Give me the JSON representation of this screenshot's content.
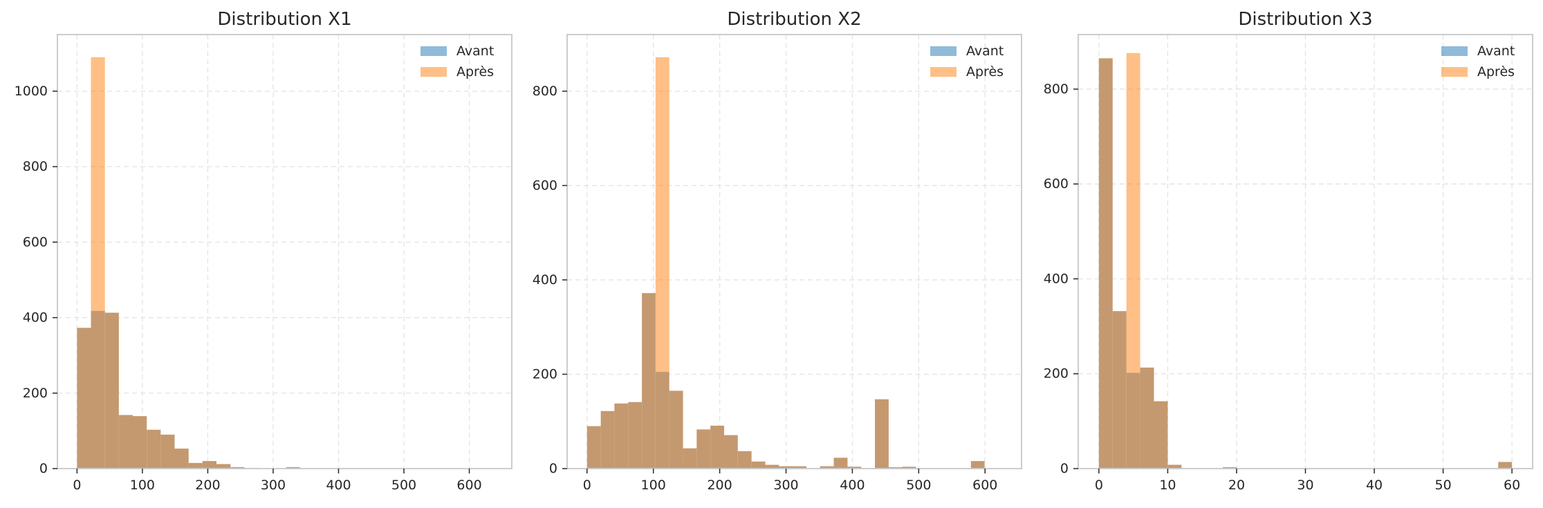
{
  "colors": {
    "avant": "#1f77b4",
    "apres": "#ff7f0e",
    "overlap": "#c4996f",
    "grid": "#e3e3e3",
    "axis": "#cccccc",
    "text": "#262626"
  },
  "chart_data": [
    {
      "type": "histogram",
      "title": "Distribution X1",
      "xlabel": "",
      "ylabel": "",
      "xlim": [
        -30,
        665
      ],
      "ylim": [
        0,
        1150
      ],
      "xticks": [
        0,
        100,
        200,
        300,
        400,
        500,
        600
      ],
      "yticks": [
        0,
        200,
        400,
        600,
        800,
        1000
      ],
      "grid": true,
      "legend_position": "top-right",
      "series": [
        {
          "name": "Avant",
          "bin_edges": [
            0,
            21.3,
            42.7,
            64,
            85.3,
            106.7,
            128,
            149.3,
            170.7,
            192,
            213.3,
            234.7,
            256,
            277.3,
            298.7,
            320,
            341.3,
            362.7,
            384,
            405.3,
            426.7,
            448,
            469.3,
            490.7,
            512,
            533.3,
            554.7,
            576,
            597.3,
            618.7,
            640
          ],
          "counts": [
            373,
            418,
            413,
            142,
            139,
            103,
            90,
            53,
            15,
            20,
            12,
            4,
            2,
            0,
            0,
            4,
            0,
            0,
            0,
            0,
            0,
            0,
            0,
            1,
            0,
            0,
            0,
            0,
            0,
            0
          ]
        },
        {
          "name": "Après",
          "bin_edges": [
            0,
            21.3,
            42.7,
            64,
            85.3,
            106.7,
            128,
            149.3,
            170.7,
            192,
            213.3,
            234.7,
            256,
            277.3,
            298.7,
            320,
            341.3,
            362.7,
            384,
            405.3,
            426.7,
            448,
            469.3,
            490.7,
            512,
            533.3,
            554.7,
            576,
            597.3,
            618.7,
            640
          ],
          "counts": [
            373,
            1090,
            413,
            142,
            139,
            103,
            90,
            53,
            15,
            20,
            12,
            4,
            2,
            0,
            0,
            4,
            0,
            0,
            0,
            0,
            0,
            0,
            0,
            1,
            0,
            0,
            0,
            0,
            0,
            0
          ]
        }
      ]
    },
    {
      "type": "histogram",
      "title": "Distribution X2",
      "xlabel": "",
      "ylabel": "",
      "xlim": [
        -30,
        655
      ],
      "ylim": [
        0,
        920
      ],
      "xticks": [
        0,
        100,
        200,
        300,
        400,
        500,
        600
      ],
      "yticks": [
        0,
        200,
        400,
        600,
        800
      ],
      "grid": true,
      "legend_position": "top-right",
      "series": [
        {
          "name": "Avant",
          "bin_edges": [
            0,
            20.7,
            41.3,
            62,
            82.7,
            103.3,
            124,
            144.7,
            165.3,
            186,
            206.7,
            227.3,
            248,
            268.7,
            289.3,
            310,
            330.7,
            351.3,
            372,
            392.7,
            413.3,
            434,
            454.7,
            475.3,
            496,
            516.7,
            537.3,
            558,
            578.7,
            599.3,
            620
          ],
          "counts": [
            90,
            122,
            138,
            141,
            372,
            205,
            165,
            43,
            83,
            91,
            71,
            37,
            15,
            8,
            5,
            5,
            0,
            5,
            23,
            4,
            0,
            147,
            3,
            4,
            0,
            0,
            0,
            0,
            16,
            0
          ]
        },
        {
          "name": "Après",
          "bin_edges": [
            0,
            20.7,
            41.3,
            62,
            82.7,
            103.3,
            124,
            144.7,
            165.3,
            186,
            206.7,
            227.3,
            248,
            268.7,
            289.3,
            310,
            330.7,
            351.3,
            372,
            392.7,
            413.3,
            434,
            454.7,
            475.3,
            496,
            516.7,
            537.3,
            558,
            578.7,
            599.3,
            620
          ],
          "counts": [
            90,
            122,
            138,
            141,
            372,
            872,
            165,
            43,
            83,
            91,
            71,
            37,
            15,
            8,
            5,
            5,
            0,
            5,
            23,
            4,
            0,
            147,
            3,
            4,
            0,
            0,
            0,
            0,
            16,
            0
          ]
        }
      ]
    },
    {
      "type": "histogram",
      "title": "Distribution X3",
      "xlabel": "",
      "ylabel": "",
      "xlim": [
        -3,
        63
      ],
      "ylim": [
        0,
        915
      ],
      "xticks": [
        0,
        10,
        20,
        30,
        40,
        50,
        60
      ],
      "yticks": [
        0,
        200,
        400,
        600,
        800
      ],
      "grid": true,
      "legend_position": "top-right",
      "series": [
        {
          "name": "Avant",
          "bin_edges": [
            0,
            2,
            4,
            6,
            8,
            10,
            12,
            14,
            16,
            18,
            20,
            22,
            24,
            26,
            28,
            30,
            32,
            34,
            36,
            38,
            40,
            42,
            44,
            46,
            48,
            50,
            52,
            54,
            56,
            58,
            60
          ],
          "counts": [
            865,
            332,
            202,
            213,
            142,
            8,
            0,
            0,
            0,
            3,
            0,
            0,
            0,
            0,
            0,
            0,
            1,
            0,
            0,
            0,
            0,
            0,
            0,
            0,
            0,
            0,
            0,
            0,
            0,
            14
          ]
        },
        {
          "name": "Après",
          "bin_edges": [
            0,
            2,
            4,
            6,
            8,
            10,
            12,
            14,
            16,
            18,
            20,
            22,
            24,
            26,
            28,
            30,
            32,
            34,
            36,
            38,
            40,
            42,
            44,
            46,
            48,
            50,
            52,
            54,
            56,
            58,
            60
          ],
          "counts": [
            865,
            332,
            876,
            213,
            142,
            8,
            0,
            0,
            0,
            3,
            0,
            0,
            0,
            0,
            0,
            0,
            1,
            0,
            0,
            0,
            0,
            0,
            0,
            0,
            0,
            0,
            0,
            0,
            0,
            14
          ]
        }
      ]
    }
  ]
}
